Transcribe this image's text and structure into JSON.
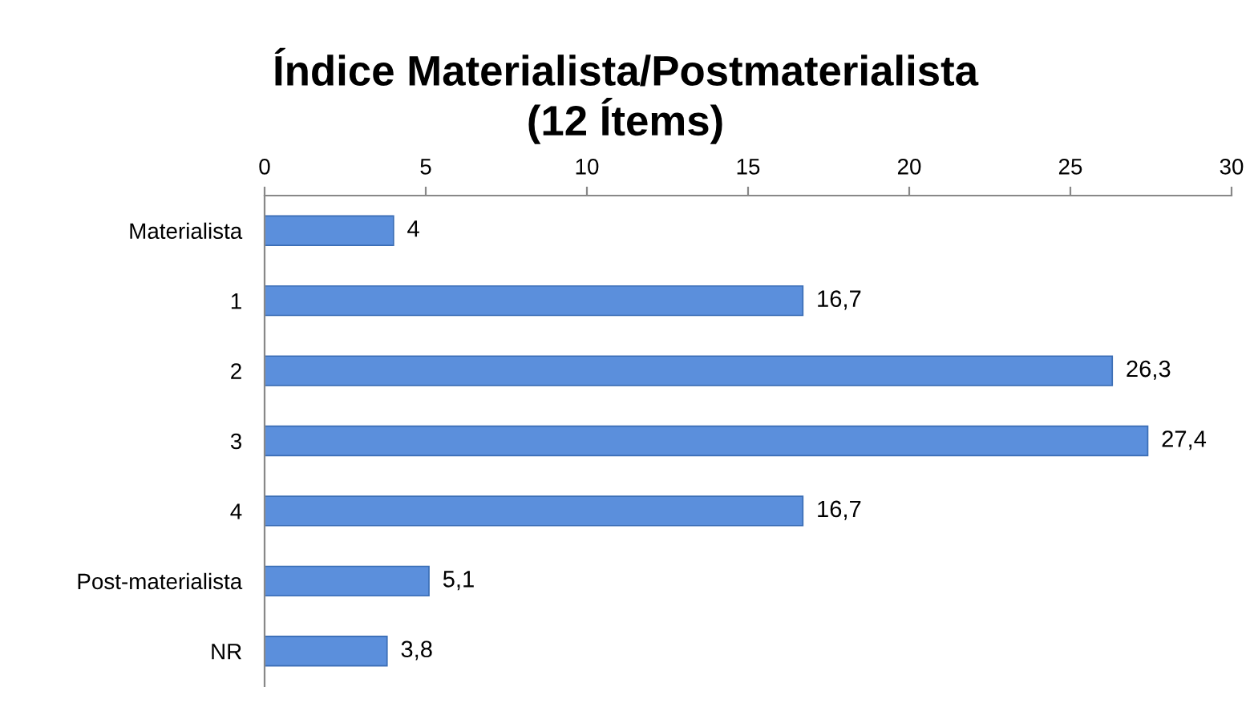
{
  "chart_data": {
    "type": "bar",
    "orientation": "horizontal",
    "title": "Índice Materialista/Postmaterialista\n(12 Ítems)",
    "categories": [
      "Materialista",
      "1",
      "2",
      "3",
      "4",
      "Post-materialista",
      "NR"
    ],
    "values": [
      4,
      16.7,
      26.3,
      27.4,
      16.7,
      5.1,
      3.8
    ],
    "value_labels": [
      "4",
      "16,7",
      "26,3",
      "27,4",
      "16,7",
      "5,1",
      "3,8"
    ],
    "color": "#5b8fdc",
    "xlim": [
      0,
      30
    ],
    "xticks": [
      0,
      5,
      10,
      15,
      20,
      25,
      30
    ],
    "grid": false
  }
}
